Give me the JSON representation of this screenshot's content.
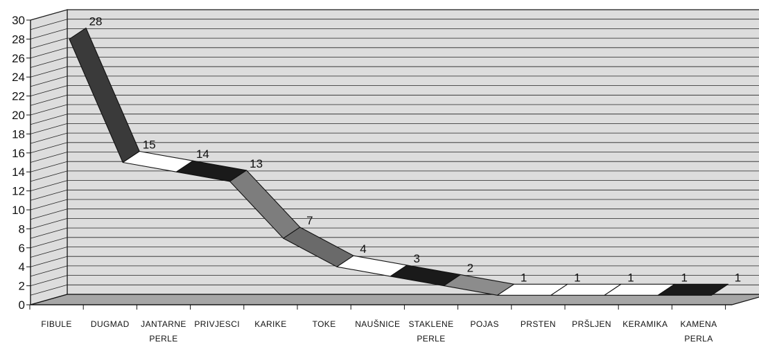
{
  "chart_data": {
    "type": "line",
    "style": "3d-ribbon",
    "categories": [
      [
        "FIBULE"
      ],
      [
        "DUGMAD"
      ],
      [
        "JANTARNE",
        "PERLE"
      ],
      [
        "PRIVJESCI"
      ],
      [
        "KARIKE"
      ],
      [
        "TOKE"
      ],
      [
        "NAUŠNICE"
      ],
      [
        "STAKLENE",
        "PERLE"
      ],
      [
        "POJAS"
      ],
      [
        "PRSTEN"
      ],
      [
        "PRŠLJEN"
      ],
      [
        "KERAMIKA"
      ],
      [
        "KAMENA",
        "PERLA"
      ]
    ],
    "values": [
      28,
      15,
      14,
      13,
      7,
      4,
      3,
      2,
      1,
      1,
      1,
      1,
      1
    ],
    "data_labels": [
      "28",
      "15",
      "14",
      "13",
      "7",
      "4",
      "3",
      "2",
      "1",
      "1",
      "1",
      "1",
      "1"
    ],
    "yticks": [
      "0",
      "2",
      "4",
      "6",
      "8",
      "10",
      "12",
      "14",
      "16",
      "18",
      "20",
      "22",
      "24",
      "26",
      "28",
      "30"
    ],
    "ylim": [
      0,
      30
    ],
    "y_minor_step": 1,
    "grid": true,
    "title": "",
    "xlabel": "",
    "ylabel": "",
    "colors": {
      "wall": "#dddddd",
      "floor": "#a6a6a6",
      "segment_fills": [
        "#3a3a3a",
        "#ffffff",
        "#1a1a1a",
        "#7d7d7d",
        "#6a6a6a",
        "#ffffff",
        "#1a1a1a",
        "#8c8c8c",
        "#ffffff",
        "#ffffff",
        "#ffffff",
        "#1a1a1a"
      ]
    }
  }
}
